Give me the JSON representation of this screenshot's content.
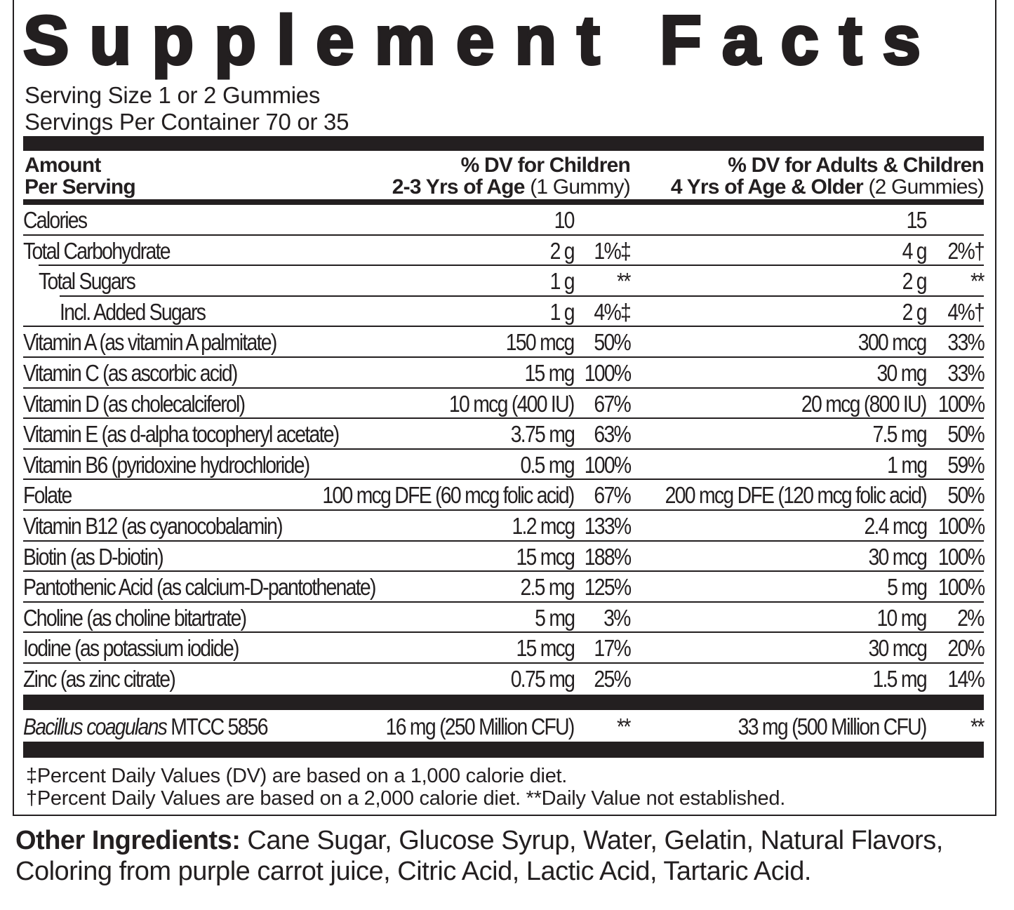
{
  "title": "Supplement Facts",
  "serving_size": "Serving Size 1 or 2 Gummies",
  "servings_per_container": "Servings Per Container 70 or 35",
  "header": {
    "amount_line1": "Amount",
    "amount_line2": "Per Serving",
    "children_line1": "% DV for Children",
    "children_line2_bold": "2-3 Yrs of Age",
    "children_line2_normal": " (1 Gummy)",
    "adults_line1": "% DV for Adults & Children",
    "adults_line2_bold": "4 Yrs of Age & Older",
    "adults_line2_normal": " (2 Gummies)"
  },
  "rows": [
    {
      "name": "Calories",
      "child_amount": "10",
      "child_dv": "",
      "adult_amount": "15",
      "adult_dv": ""
    },
    {
      "name": "Total Carbohydrate",
      "child_amount": "2 g",
      "child_dv": "1%‡",
      "adult_amount": "4 g",
      "adult_dv": "2%†"
    },
    {
      "name": "Total Sugars",
      "child_amount": "1 g",
      "child_dv": "**",
      "adult_amount": "2 g",
      "adult_dv": "**"
    },
    {
      "name": "Incl. Added Sugars",
      "child_amount": "1 g",
      "child_dv": "4%‡",
      "adult_amount": "2 g",
      "adult_dv": "4%†"
    },
    {
      "name": "Vitamin A (as vitamin A palmitate)",
      "child_amount": "150 mcg",
      "child_dv": "50%",
      "adult_amount": "300 mcg",
      "adult_dv": "33%"
    },
    {
      "name": "Vitamin C (as ascorbic acid)",
      "child_amount": "15 mg",
      "child_dv": "100%",
      "adult_amount": "30 mg",
      "adult_dv": "33%"
    },
    {
      "name": "Vitamin D (as cholecalciferol)",
      "child_amount": "10 mcg (400 IU)",
      "child_dv": "67%",
      "adult_amount": "20 mcg (800 IU)",
      "adult_dv": "100%"
    },
    {
      "name": "Vitamin E (as d-alpha tocopheryl acetate)",
      "child_amount": "3.75 mg",
      "child_dv": "63%",
      "adult_amount": "7.5 mg",
      "adult_dv": "50%"
    },
    {
      "name": "Vitamin B6 (pyridoxine hydrochloride)",
      "child_amount": "0.5 mg",
      "child_dv": "100%",
      "adult_amount": "1 mg",
      "adult_dv": "59%"
    },
    {
      "name": "Folate",
      "child_amount": "100 mcg DFE (60 mcg folic acid)",
      "child_dv": "67%",
      "adult_amount": "200 mcg DFE (120 mcg folic acid)",
      "adult_dv": "50%"
    },
    {
      "name": "Vitamin B12 (as cyanocobalamin)",
      "child_amount": "1.2 mcg",
      "child_dv": "133%",
      "adult_amount": "2.4 mcg",
      "adult_dv": "100%"
    },
    {
      "name": "Biotin (as D-biotin)",
      "child_amount": "15 mcg",
      "child_dv": "188%",
      "adult_amount": "30 mcg",
      "adult_dv": "100%"
    },
    {
      "name": "Pantothenic Acid (as calcium-D-pantothenate)",
      "child_amount": "2.5 mg",
      "child_dv": "125%",
      "adult_amount": "5 mg",
      "adult_dv": "100%"
    },
    {
      "name": "Choline (as choline bitartrate)",
      "child_amount": "5 mg",
      "child_dv": "3%",
      "adult_amount": "10 mg",
      "adult_dv": "2%"
    },
    {
      "name": "Iodine (as potassium iodide)",
      "child_amount": "15 mcg",
      "child_dv": "17%",
      "adult_amount": "30 mcg",
      "adult_dv": "20%"
    },
    {
      "name": "Zinc (as zinc citrate)",
      "child_amount": "0.75 mg",
      "child_dv": "25%",
      "adult_amount": "1.5 mg",
      "adult_dv": "14%"
    }
  ],
  "probiotic": {
    "name_italic": "Bacillus coagulans",
    "name_rest": " MTCC 5856",
    "child_amount": "16 mg (250 Million CFU)",
    "child_dv": "**",
    "adult_amount": "33 mg (500 Million CFU)",
    "adult_dv": "**"
  },
  "footnotes": [
    "‡Percent Daily Values (DV) are based on a 1,000 calorie diet.",
    "†Percent Daily Values are based on a 2,000 calorie diet. **Daily Value not established."
  ],
  "other_ingredients": {
    "label": "Other Ingredients:",
    "text": " Cane Sugar, Glucose Syrup, Water, Gelatin, Natural Flavors, Coloring from purple carrot juice, Citric Acid, Lactic Acid, Tartaric Acid."
  }
}
